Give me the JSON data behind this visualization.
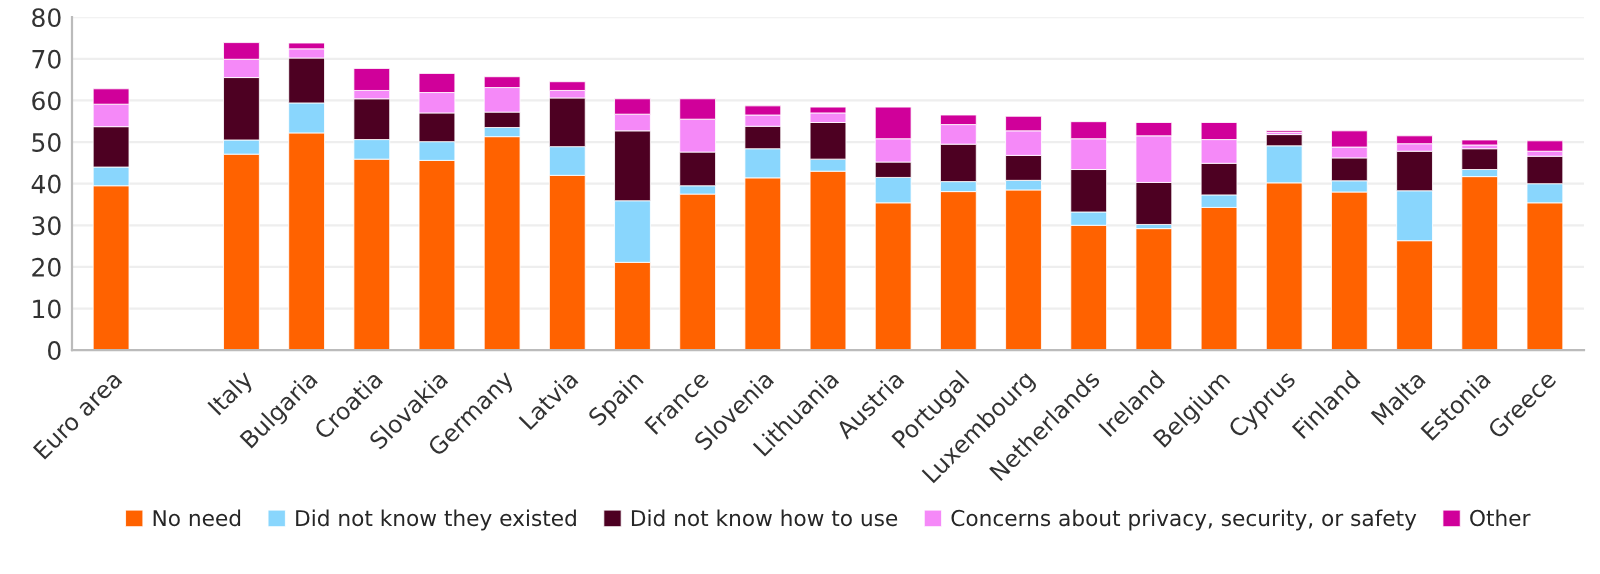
{
  "chart_data": {
    "type": "bar",
    "stacked": true,
    "categories": [
      "Euro area",
      null,
      "Italy",
      "Bulgaria",
      "Croatia",
      "Slovakia",
      "Germany",
      "Latvia",
      "Spain",
      "France",
      "Slovenia",
      "Lithuania",
      "Austria",
      "Portugal",
      "Luxembourg",
      "Netherlands",
      "Ireland",
      "Belgium",
      "Cyprus",
      "Finland",
      "Malta",
      "Estonia",
      "Greece"
    ],
    "series": [
      {
        "name": "No need",
        "color": "#ff6200",
        "values": [
          39.5,
          null,
          47.1,
          52.2,
          45.9,
          45.6,
          51.3,
          42.0,
          21.1,
          37.5,
          41.4,
          43.0,
          35.4,
          38.1,
          38.5,
          30.0,
          29.2,
          34.3,
          40.2,
          38.0,
          26.3,
          41.7,
          35.4
        ]
      },
      {
        "name": "Did not know they existed",
        "color": "#89d6fd",
        "values": [
          4.5,
          null,
          3.4,
          7.2,
          4.7,
          4.5,
          2.2,
          6.9,
          14.8,
          2.0,
          7.0,
          2.9,
          6.1,
          2.4,
          2.3,
          3.2,
          1.0,
          3.0,
          8.9,
          2.7,
          12.0,
          1.7,
          4.6
        ]
      },
      {
        "name": "Did not know how to use",
        "color": "#4d0022",
        "values": [
          9.7,
          null,
          15.0,
          10.8,
          9.8,
          6.9,
          3.7,
          11.7,
          16.8,
          8.1,
          5.4,
          8.8,
          3.7,
          9.0,
          6.0,
          10.2,
          10.1,
          7.6,
          2.7,
          5.5,
          9.5,
          5.0,
          6.6
        ]
      },
      {
        "name": "Concerns about privacy, security, or safety",
        "color": "#f589f8",
        "values": [
          5.4,
          null,
          4.4,
          2.2,
          2.0,
          4.9,
          5.9,
          1.8,
          4.0,
          7.9,
          2.7,
          2.3,
          5.6,
          4.7,
          5.9,
          7.4,
          11.2,
          5.7,
          0.5,
          2.6,
          1.8,
          0.9,
          1.2
        ]
      },
      {
        "name": "Other",
        "color": "#d0009a",
        "values": [
          3.7,
          null,
          4.0,
          1.4,
          5.3,
          4.6,
          2.6,
          2.1,
          3.7,
          4.9,
          2.2,
          1.4,
          7.6,
          2.3,
          3.5,
          4.1,
          3.2,
          4.1,
          0.4,
          3.9,
          1.9,
          1.2,
          2.5
        ]
      }
    ],
    "ylim": [
      0,
      80
    ],
    "yticks": [
      0,
      10,
      20,
      30,
      40,
      50,
      60,
      70,
      80
    ],
    "grid": "y",
    "legend": "bottom"
  }
}
